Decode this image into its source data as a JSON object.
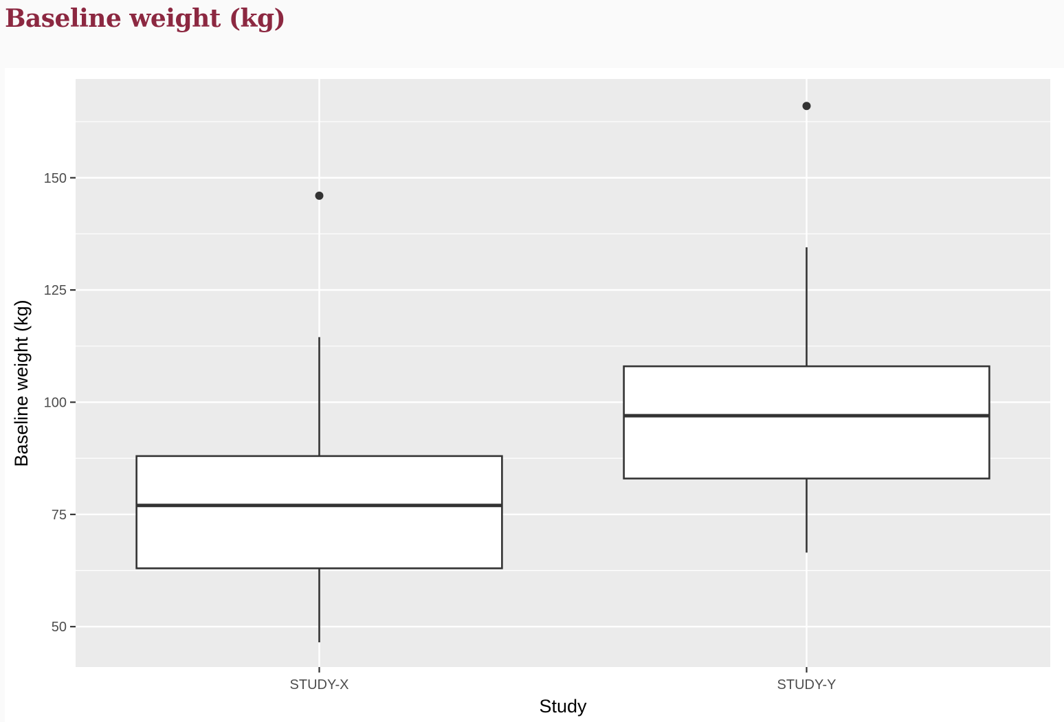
{
  "page": {
    "title": "Baseline weight (kg)"
  },
  "chart_data": {
    "type": "boxplot",
    "title": "",
    "xlabel": "Study",
    "ylabel": "Baseline weight (kg)",
    "ylim": [
      41,
      172
    ],
    "yticks": [
      50,
      75,
      100,
      125,
      150
    ],
    "categories": [
      "STUDY-X",
      "STUDY-Y"
    ],
    "boxes": [
      {
        "category": "STUDY-X",
        "whisker_low": 46.5,
        "q1": 63,
        "median": 77,
        "q3": 88,
        "whisker_high": 114.5,
        "outliers": [
          146
        ]
      },
      {
        "category": "STUDY-Y",
        "whisker_low": 66.5,
        "q1": 83,
        "median": 97,
        "q3": 108,
        "whisker_high": 134.5,
        "outliers": [
          166
        ]
      }
    ],
    "grid": true,
    "legend": "none",
    "colors": {
      "panel_background": "#ebebeb",
      "grid": "#ffffff",
      "box_fill": "#ffffff",
      "box_stroke": "#333333",
      "tick_mark": "#333333",
      "title": "#8c2841"
    }
  }
}
